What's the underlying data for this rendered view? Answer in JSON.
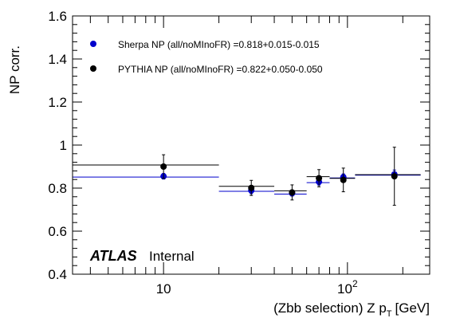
{
  "chart_data": {
    "type": "scatter",
    "title": "",
    "xlabel": "(Zbb selection) Z p",
    "xlabel_subscript": "T",
    "xlabel_unit": "[GeV]",
    "ylabel": "NP corr.",
    "xscale": "log",
    "xlim": [
      3.2,
      280
    ],
    "ylim": [
      0.4,
      1.6
    ],
    "grid": false,
    "legend_position": "top-left",
    "x_tick_labels": [
      {
        "value": 10,
        "label": "10"
      },
      {
        "value": 100,
        "label": "10",
        "sup": "2"
      }
    ],
    "y_ticks": [
      "0.4",
      "0.6",
      "0.8",
      "1",
      "1.2",
      "1.4",
      "1.6"
    ],
    "series": [
      {
        "name": "Sherpa NP (all/noMInoFR) =0.818+0.015-0.015",
        "color": "#0000cc",
        "points": [
          {
            "x": 10,
            "xlo": 3.2,
            "xhi": 20,
            "y": 0.855,
            "yerr": 0.013
          },
          {
            "x": 30,
            "xlo": 20,
            "xhi": 40,
            "y": 0.789,
            "yerr": 0.015
          },
          {
            "x": 50,
            "xlo": 40,
            "xhi": 60,
            "y": 0.776,
            "yerr": 0.013
          },
          {
            "x": 70,
            "xlo": 60,
            "xhi": 80,
            "y": 0.829,
            "yerr": 0.015
          },
          {
            "x": 95,
            "xlo": 80,
            "xhi": 110,
            "y": 0.851,
            "yerr": 0.015
          },
          {
            "x": 180,
            "xlo": 110,
            "xhi": 250,
            "y": 0.864,
            "yerr": 0.02
          }
        ]
      },
      {
        "name": "PYTHIA NP (all/noMInoFR) =0.822+0.050-0.050",
        "color": "#000000",
        "points": [
          {
            "x": 10,
            "xlo": 3.2,
            "xhi": 20,
            "y": 0.9,
            "yerr": 0.055
          },
          {
            "x": 30,
            "xlo": 20,
            "xhi": 40,
            "y": 0.801,
            "yerr": 0.035
          },
          {
            "x": 50,
            "xlo": 40,
            "xhi": 60,
            "y": 0.78,
            "yerr": 0.035
          },
          {
            "x": 70,
            "xlo": 60,
            "xhi": 80,
            "y": 0.846,
            "yerr": 0.04
          },
          {
            "x": 95,
            "xlo": 80,
            "xhi": 110,
            "y": 0.838,
            "yerr": 0.055
          },
          {
            "x": 180,
            "xlo": 110,
            "xhi": 250,
            "y": 0.855,
            "yerr": 0.135
          }
        ]
      }
    ],
    "annotations": {
      "atlas": "ATLAS",
      "status": "Internal"
    }
  }
}
